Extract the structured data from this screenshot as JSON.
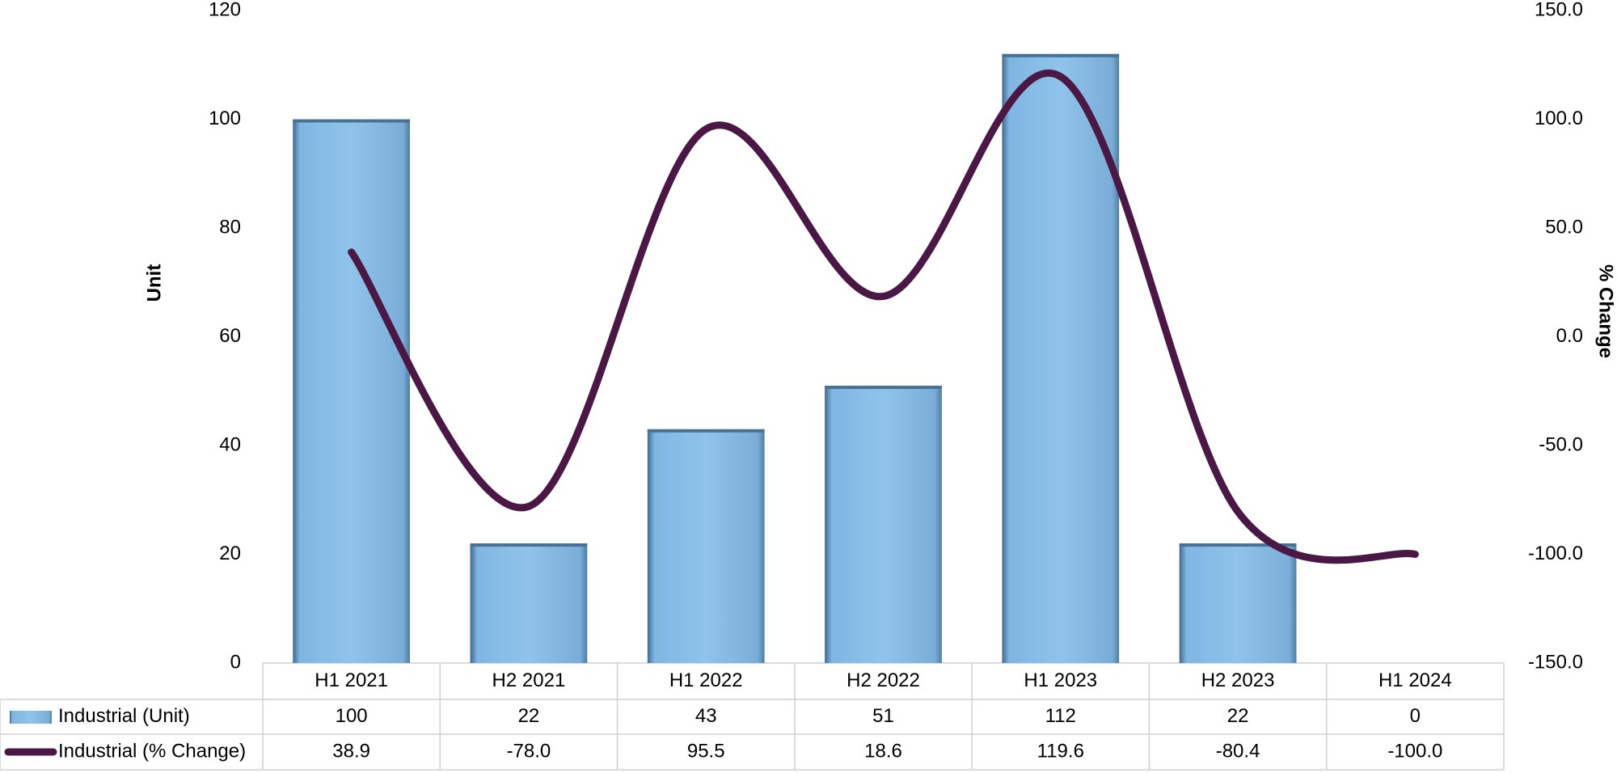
{
  "chart_data": {
    "type": "bar-line",
    "categories": [
      "H1 2021",
      "H2 2021",
      "H1 2022",
      "H2 2022",
      "H1 2023",
      "H2 2023",
      "H1 2024"
    ],
    "series": [
      {
        "name": "Industrial (Unit)",
        "color": "#7db5e2",
        "values": [
          100,
          22,
          43,
          51,
          112,
          22,
          0
        ]
      },
      {
        "name": "Industrial (% Change)",
        "color": "#4b1846",
        "axis": "y2",
        "values": [
          38.9,
          -78.0,
          95.5,
          18.6,
          119.6,
          -80.4,
          -100.0
        ],
        "value_labels": [
          "38.9",
          "-78.0",
          "95.5",
          "18.6",
          "119.6",
          "-80.4",
          "-100.0"
        ]
      }
    ],
    "ylabel": "Unit",
    "y2label": "% Change",
    "ylim": [
      0,
      120
    ],
    "yticks": [
      0,
      20,
      40,
      60,
      80,
      100,
      120
    ],
    "y2lim": [
      -150,
      150
    ],
    "y2ticks": [
      {
        "value": -150,
        "label": "-150.0"
      },
      {
        "value": -100,
        "label": "-100.0"
      },
      {
        "value": -50,
        "label": "-50.0"
      },
      {
        "value": 0,
        "label": "0.0"
      },
      {
        "value": 50,
        "label": "50.0"
      },
      {
        "value": 100,
        "label": "100.0"
      },
      {
        "value": 150,
        "label": "150.0"
      }
    ]
  }
}
